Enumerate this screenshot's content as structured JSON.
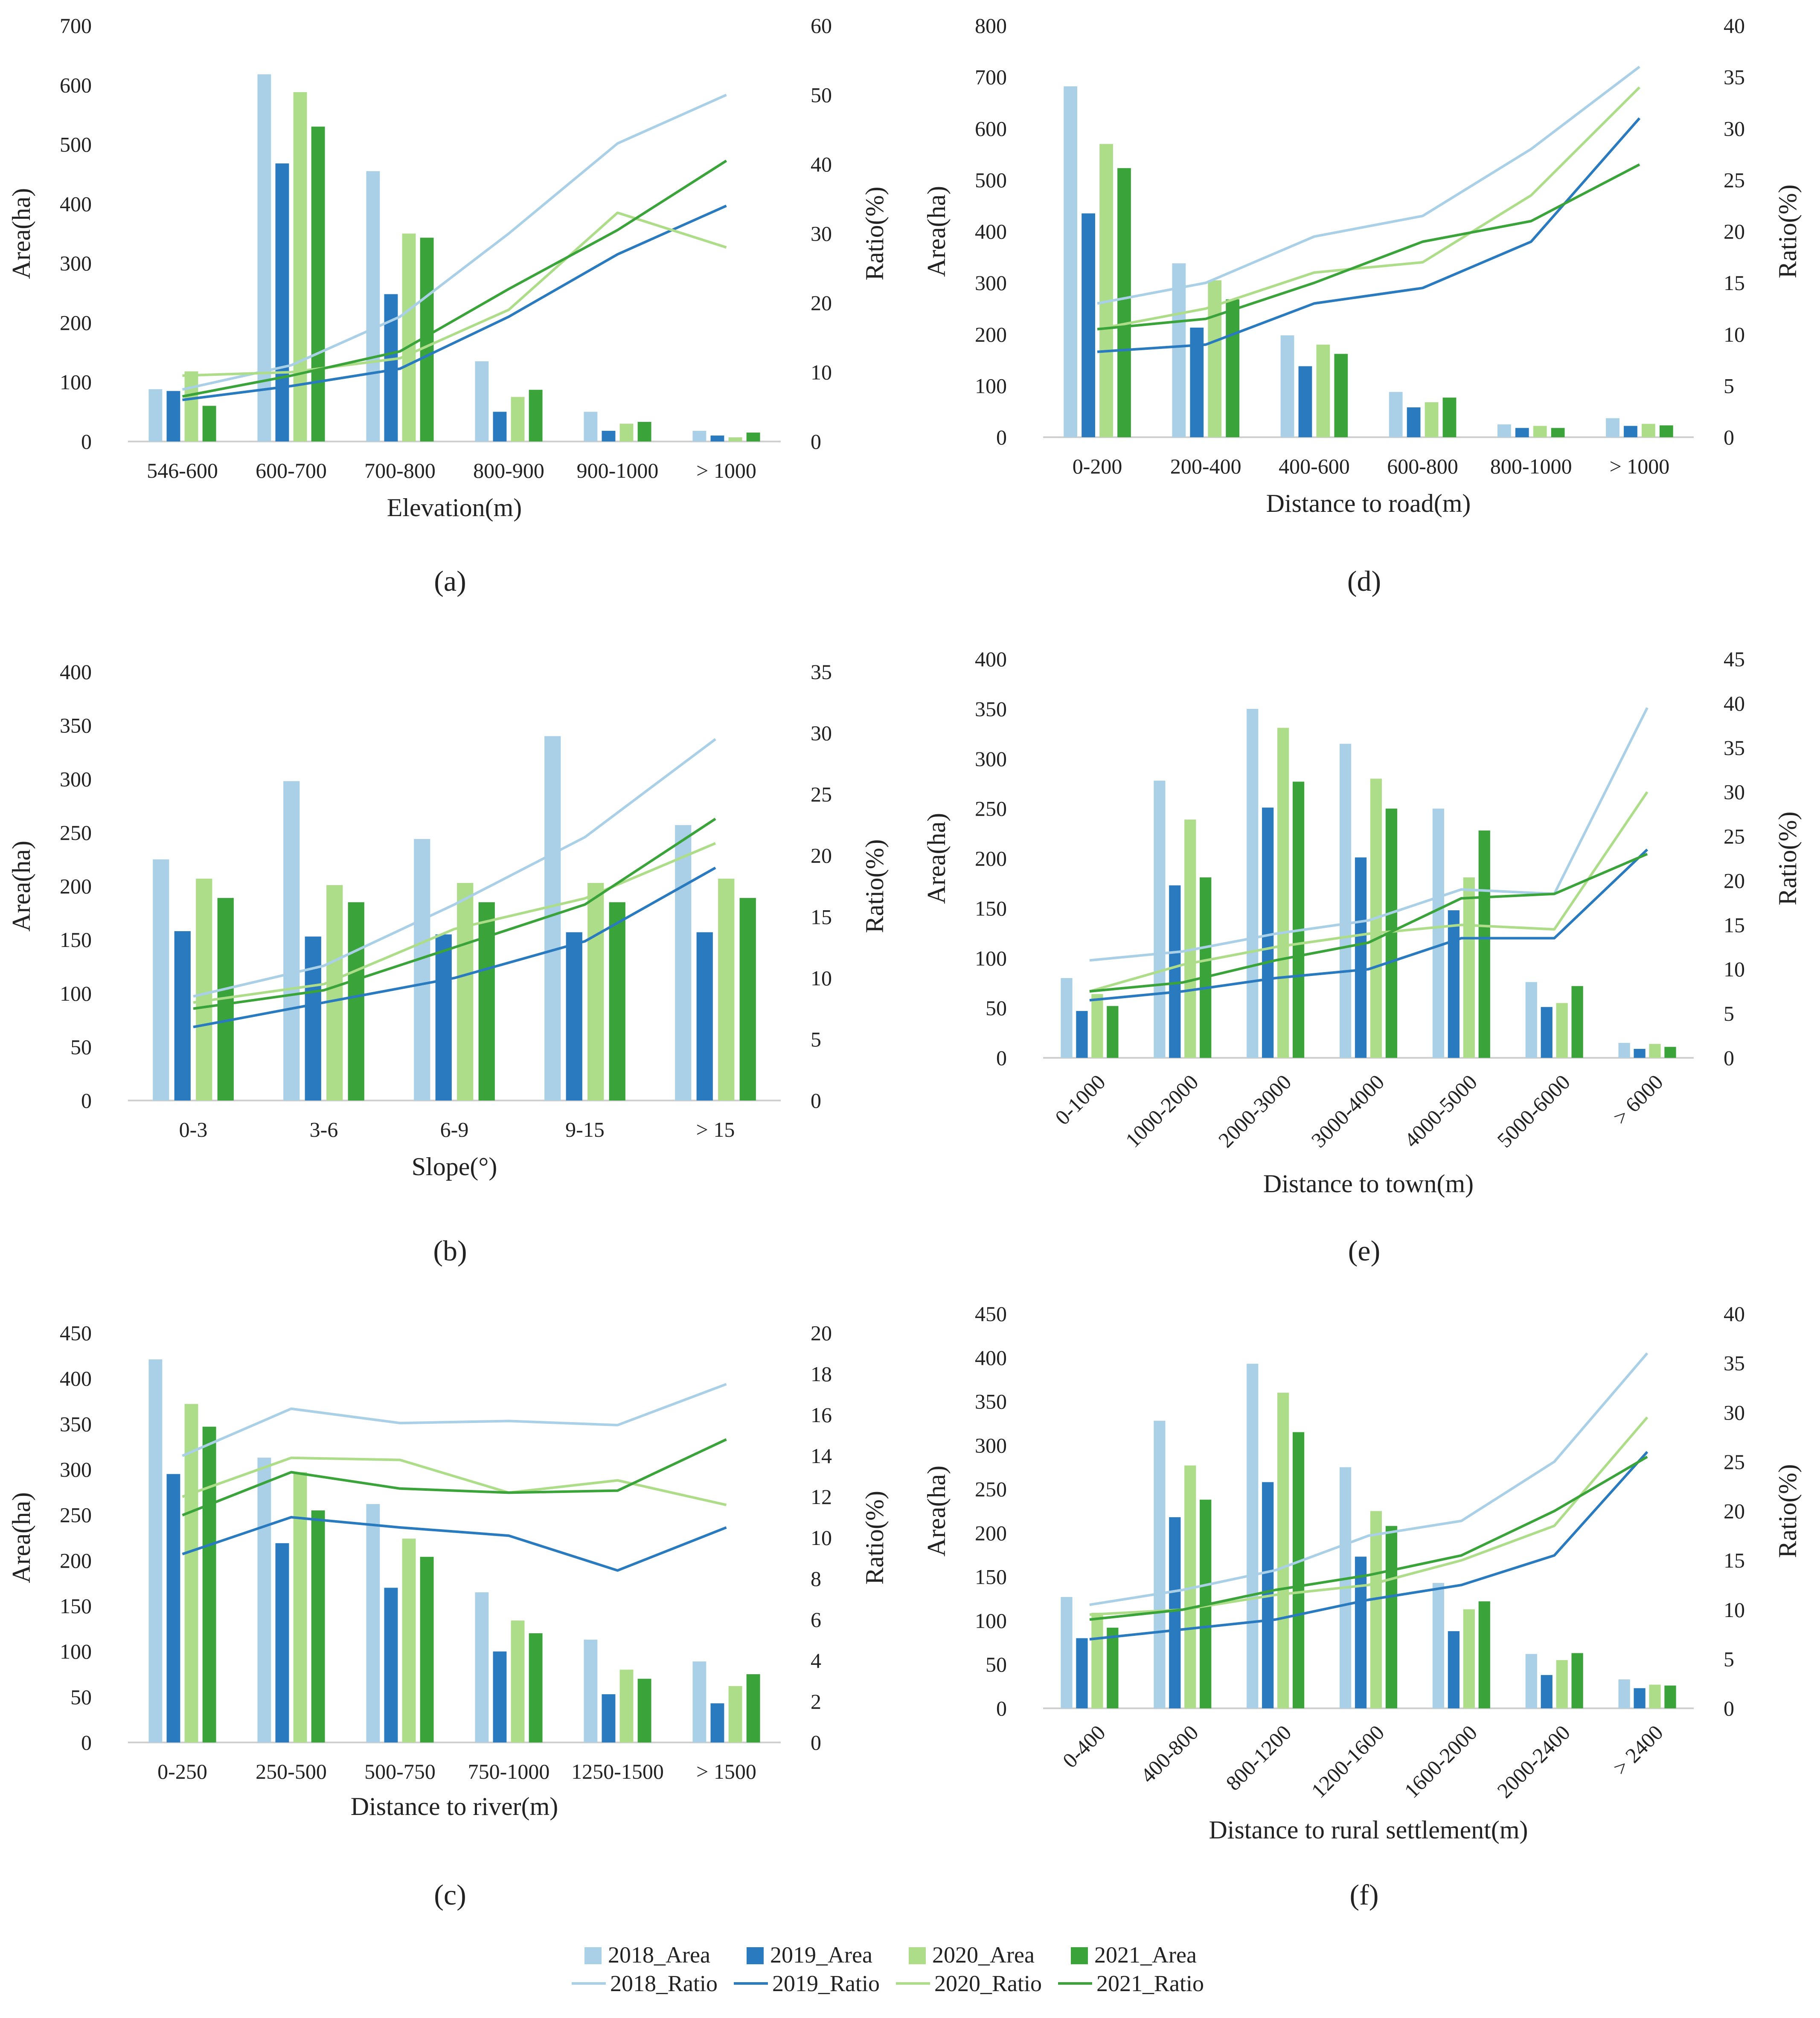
{
  "colors": {
    "2018": "#a9d0e6",
    "2019": "#2a7abf",
    "2020": "#aedd8a",
    "2021": "#3aa33a",
    "axis": "#cfcfcf",
    "text": "#222222"
  },
  "legend": {
    "area_items": [
      "2018_Area",
      "2019_Area",
      "2020_Area",
      "2021_Area"
    ],
    "ratio_items": [
      "2018_Ratio",
      "2019_Ratio",
      "2020_Ratio",
      "2021_Ratio"
    ]
  },
  "chart_data": [
    {
      "id": "a",
      "panel_label": "(a)",
      "type": "bar+line",
      "xlabel": "Elevation(m)",
      "ylabel_left": "Area(ha)",
      "ylabel_right": "Ratio(%)",
      "categories": [
        "546-600",
        "600-700",
        "700-800",
        "800-900",
        "900-1000",
        "> 1000"
      ],
      "ylim_left": [
        0,
        700
      ],
      "ytick_step_left": 100,
      "ylim_right": [
        0,
        60
      ],
      "ytick_step_right": 10,
      "rotate_ticks": false,
      "area_series": [
        {
          "name": "2018_Area",
          "values": [
            88,
            618,
            455,
            135,
            50,
            18
          ]
        },
        {
          "name": "2019_Area",
          "values": [
            85,
            468,
            248,
            50,
            18,
            10
          ]
        },
        {
          "name": "2020_Area",
          "values": [
            118,
            588,
            350,
            75,
            30,
            7
          ]
        },
        {
          "name": "2021_Area",
          "values": [
            60,
            530,
            343,
            87,
            33,
            15
          ]
        }
      ],
      "ratio_series": [
        {
          "name": "2018_Ratio",
          "values": [
            7.5,
            11,
            18,
            30,
            43,
            50
          ]
        },
        {
          "name": "2019_Ratio",
          "values": [
            6,
            8,
            10.5,
            18,
            27,
            34
          ]
        },
        {
          "name": "2020_Ratio",
          "values": [
            9.5,
            10,
            12,
            19,
            33,
            28
          ]
        },
        {
          "name": "2021_Ratio",
          "values": [
            6.5,
            9.5,
            13,
            22,
            30.5,
            40.5
          ]
        }
      ]
    },
    {
      "id": "b",
      "panel_label": "(b)",
      "type": "bar+line",
      "xlabel": "Slope(°)",
      "ylabel_left": "Area(ha)",
      "ylabel_right": "Ratio(%)",
      "categories": [
        "0-3",
        "3-6",
        "6-9",
        "9-15",
        "> 15"
      ],
      "ylim_left": [
        0,
        400
      ],
      "ytick_step_left": 50,
      "ylim_right": [
        0,
        35
      ],
      "ytick_step_right": 5,
      "rotate_ticks": false,
      "area_series": [
        {
          "name": "2018_Area",
          "values": [
            225,
            298,
            244,
            340,
            257
          ]
        },
        {
          "name": "2019_Area",
          "values": [
            158,
            153,
            155,
            157,
            157
          ]
        },
        {
          "name": "2020_Area",
          "values": [
            207,
            201,
            203,
            203,
            207
          ]
        },
        {
          "name": "2021_Area",
          "values": [
            189,
            185,
            185,
            185,
            189
          ]
        }
      ],
      "ratio_series": [
        {
          "name": "2018_Ratio",
          "values": [
            8.5,
            11,
            16,
            21.5,
            29.5
          ]
        },
        {
          "name": "2019_Ratio",
          "values": [
            6,
            8,
            10,
            13,
            19
          ]
        },
        {
          "name": "2020_Ratio",
          "values": [
            8,
            9.5,
            14,
            16.5,
            21
          ]
        },
        {
          "name": "2021_Ratio",
          "values": [
            7.5,
            9,
            12.5,
            16,
            23
          ]
        }
      ]
    },
    {
      "id": "c",
      "panel_label": "(c)",
      "type": "bar+line",
      "xlabel": "Distance to river(m)",
      "ylabel_left": "Area(ha)",
      "ylabel_right": "Ratio(%)",
      "categories": [
        "0-250",
        "250-500",
        "500-750",
        "750-1000",
        "1250-1500",
        "> 1500"
      ],
      "ylim_left": [
        0,
        450
      ],
      "ytick_step_left": 50,
      "ylim_right": [
        0,
        20
      ],
      "ytick_step_right": 2,
      "rotate_ticks": false,
      "area_series": [
        {
          "name": "2018_Area",
          "values": [
            421,
            313,
            262,
            165,
            113,
            89
          ]
        },
        {
          "name": "2019_Area",
          "values": [
            295,
            219,
            170,
            100,
            53,
            43
          ]
        },
        {
          "name": "2020_Area",
          "values": [
            372,
            297,
            224,
            134,
            80,
            62
          ]
        },
        {
          "name": "2021_Area",
          "values": [
            347,
            255,
            204,
            120,
            70,
            75
          ]
        }
      ],
      "ratio_series": [
        {
          "name": "2018_Ratio",
          "values": [
            14,
            16.3,
            15.6,
            15.7,
            15.5,
            17.5
          ]
        },
        {
          "name": "2019_Ratio",
          "values": [
            9.2,
            11,
            10.5,
            10.1,
            8.4,
            10.5
          ]
        },
        {
          "name": "2020_Ratio",
          "values": [
            12,
            13.9,
            13.8,
            12.2,
            12.8,
            11.6
          ]
        },
        {
          "name": "2021_Ratio",
          "values": [
            11.1,
            13.2,
            12.4,
            12.2,
            12.3,
            14.8
          ]
        }
      ]
    },
    {
      "id": "d",
      "panel_label": "(d)",
      "type": "bar+line",
      "xlabel": "Distance to road(m)",
      "ylabel_left": "Area(ha)",
      "ylabel_right": "Ratio(%)",
      "categories": [
        "0-200",
        "200-400",
        "400-600",
        "600-800",
        "800-1000",
        "> 1000"
      ],
      "ylim_left": [
        0,
        800
      ],
      "ytick_step_left": 100,
      "ylim_right": [
        0,
        40
      ],
      "ytick_step_right": 5,
      "rotate_ticks": false,
      "area_series": [
        {
          "name": "2018_Area",
          "values": [
            682,
            338,
            198,
            88,
            25,
            37
          ]
        },
        {
          "name": "2019_Area",
          "values": [
            435,
            213,
            138,
            58,
            18,
            22
          ]
        },
        {
          "name": "2020_Area",
          "values": [
            570,
            305,
            180,
            68,
            22,
            26
          ]
        },
        {
          "name": "2021_Area",
          "values": [
            523,
            268,
            162,
            77,
            18,
            23
          ]
        }
      ],
      "ratio_series": [
        {
          "name": "2018_Ratio",
          "values": [
            13,
            15,
            19.5,
            21.5,
            28,
            36
          ]
        },
        {
          "name": "2019_Ratio",
          "values": [
            8.3,
            9,
            13,
            14.5,
            19,
            31
          ]
        },
        {
          "name": "2020_Ratio",
          "values": [
            10.5,
            12.5,
            16,
            17,
            23.5,
            34
          ]
        },
        {
          "name": "2021_Ratio",
          "values": [
            10.5,
            11.5,
            15,
            19,
            21,
            26.5
          ]
        }
      ]
    },
    {
      "id": "e",
      "panel_label": "(e)",
      "type": "bar+line",
      "xlabel": "Distance to town(m)",
      "ylabel_left": "Area(ha)",
      "ylabel_right": "Ratio(%)",
      "categories": [
        "0-1000",
        "1000-2000",
        "2000-3000",
        "3000-4000",
        "4000-5000",
        "5000-6000",
        "> 6000"
      ],
      "ylim_left": [
        0,
        400
      ],
      "ytick_step_left": 50,
      "ylim_right": [
        0,
        45
      ],
      "ytick_step_right": 5,
      "rotate_ticks": true,
      "area_series": [
        {
          "name": "2018_Area",
          "values": [
            80,
            278,
            350,
            315,
            250,
            76,
            15
          ]
        },
        {
          "name": "2019_Area",
          "values": [
            47,
            173,
            251,
            201,
            148,
            51,
            9
          ]
        },
        {
          "name": "2020_Area",
          "values": [
            64,
            239,
            331,
            280,
            181,
            55,
            14
          ]
        },
        {
          "name": "2021_Area",
          "values": [
            52,
            181,
            277,
            250,
            228,
            72,
            11
          ]
        }
      ],
      "ratio_series": [
        {
          "name": "2018_Ratio",
          "values": [
            11,
            12,
            14,
            15.5,
            19,
            18.5,
            39.5
          ]
        },
        {
          "name": "2019_Ratio",
          "values": [
            6.5,
            7.5,
            9,
            10,
            13.5,
            13.5,
            23.5
          ]
        },
        {
          "name": "2020_Ratio",
          "values": [
            7.5,
            10.5,
            12.5,
            14,
            15,
            14.5,
            30
          ]
        },
        {
          "name": "2021_Ratio",
          "values": [
            7.5,
            8.5,
            11,
            13,
            18,
            18.5,
            23
          ]
        }
      ]
    },
    {
      "id": "f",
      "panel_label": "(f)",
      "type": "bar+line",
      "xlabel": "Distance to rural settlement(m)",
      "ylabel_left": "Area(ha)",
      "ylabel_right": "Ratio(%)",
      "categories": [
        "0-400",
        "400-800",
        "800-1200",
        "1200-1600",
        "1600-2000",
        "2000-2400",
        "> 2400"
      ],
      "ylim_left": [
        0,
        450
      ],
      "ytick_step_left": 50,
      "ylim_right": [
        0,
        40
      ],
      "ytick_step_right": 5,
      "rotate_ticks": true,
      "area_series": [
        {
          "name": "2018_Area",
          "values": [
            127,
            328,
            393,
            275,
            143,
            62,
            33
          ]
        },
        {
          "name": "2019_Area",
          "values": [
            80,
            218,
            258,
            173,
            88,
            38,
            23
          ]
        },
        {
          "name": "2020_Area",
          "values": [
            109,
            277,
            360,
            225,
            113,
            55,
            27
          ]
        },
        {
          "name": "2021_Area",
          "values": [
            92,
            238,
            315,
            208,
            122,
            63,
            26
          ]
        }
      ],
      "ratio_series": [
        {
          "name": "2018_Ratio",
          "values": [
            10.5,
            12,
            14,
            17.5,
            19,
            25,
            36
          ]
        },
        {
          "name": "2019_Ratio",
          "values": [
            7,
            8,
            9,
            11,
            12.5,
            15.5,
            26
          ]
        },
        {
          "name": "2020_Ratio",
          "values": [
            9.5,
            10,
            11.5,
            12.5,
            15,
            18.5,
            29.5
          ]
        },
        {
          "name": "2021_Ratio",
          "values": [
            9,
            10,
            12,
            13.5,
            15.5,
            20,
            25.5
          ]
        }
      ]
    }
  ]
}
